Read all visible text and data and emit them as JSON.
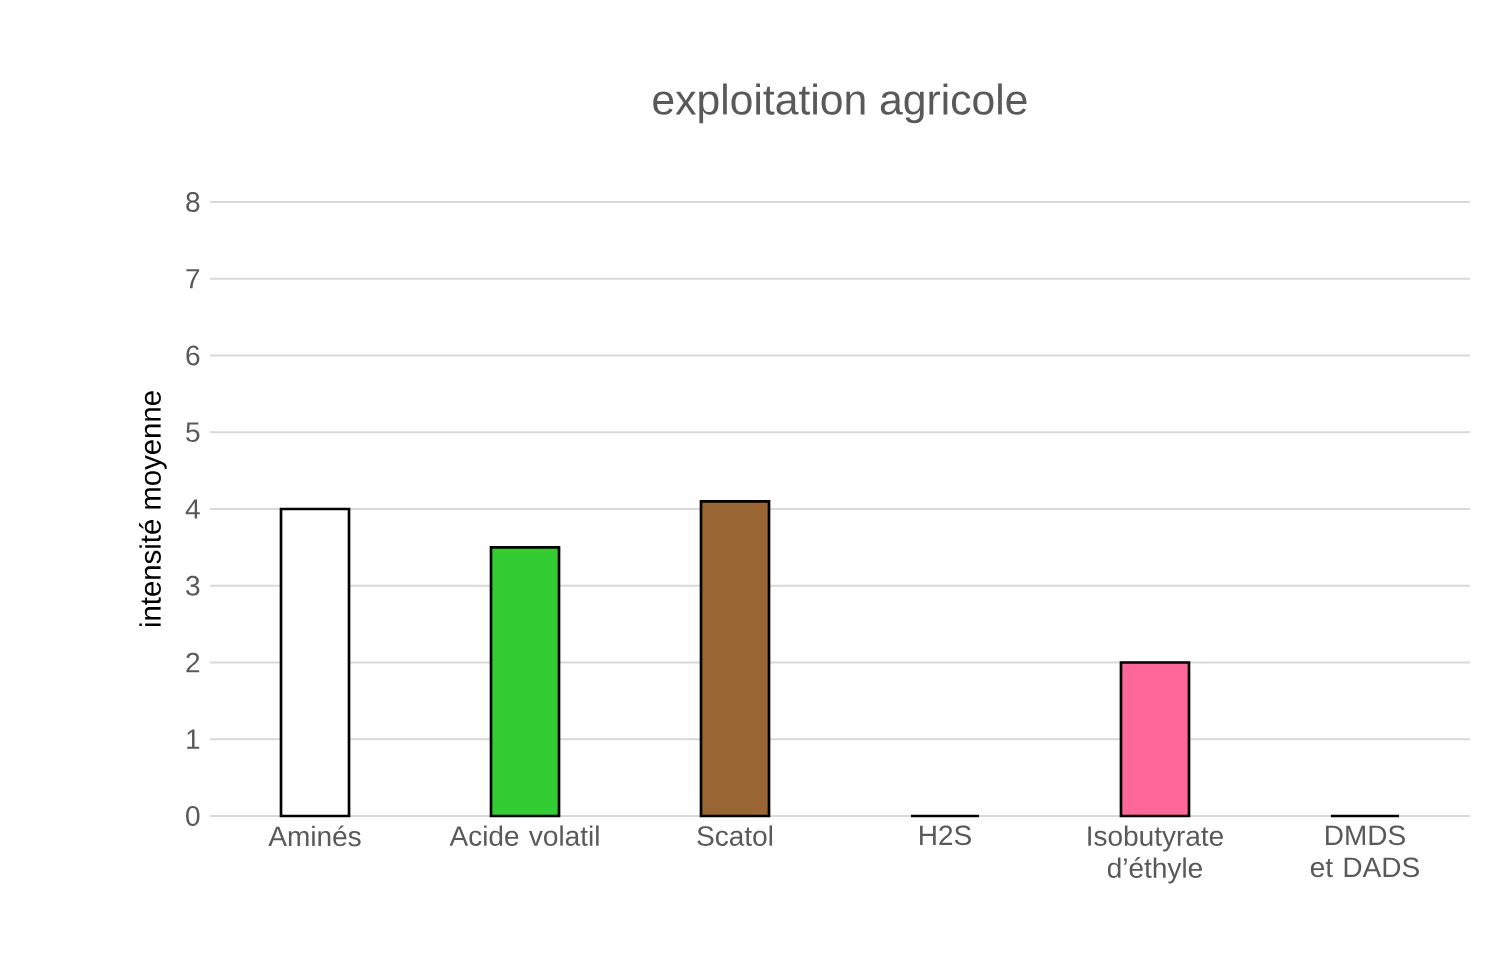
{
  "chart_data": {
    "type": "bar",
    "title": "exploitation agricole",
    "ylabel": "intensité moyenne",
    "categories": [
      "Aminés",
      "Acide volatil",
      "Scatol",
      "H2S",
      "Isobutyrate d’éthyle",
      "DMDS et DADS"
    ],
    "values": [
      4,
      3.5,
      4.1,
      0,
      2,
      0
    ],
    "colors": [
      "#ffffff",
      "#33cc33",
      "#996633",
      "#7f7f7f",
      "#ff6699",
      "#7f7f7f"
    ],
    "ylim": [
      0,
      8
    ],
    "yticks": [
      0,
      1,
      2,
      3,
      4,
      5,
      6,
      7,
      8
    ],
    "grid": "y"
  }
}
